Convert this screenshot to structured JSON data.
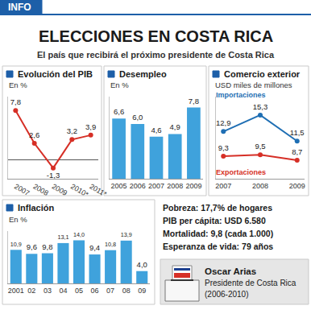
{
  "header": {
    "badge": "INFO",
    "title": "ELECCIONES EN COSTA RICA",
    "subtitle": "El país que recibirá el próximo presidente de Costa Rica"
  },
  "chart_data": [
    {
      "type": "line",
      "title": "Evolución del PIB",
      "subtitle": "En %",
      "categories": [
        "2007",
        "2008",
        "2009",
        "2010*",
        "2011*"
      ],
      "values": [
        7.8,
        2.6,
        -1.3,
        3.2,
        3.9
      ],
      "value_labels": [
        "7,8",
        "2,6",
        "-1,3",
        "3,2",
        "3,9"
      ],
      "color": "#d62f26",
      "ylim": [
        -3,
        10
      ],
      "data_labels": true,
      "tick_labels": "x"
    },
    {
      "type": "bar",
      "title": "Desempleo",
      "subtitle": "En %",
      "categories": [
        "2005",
        "2006",
        "2007",
        "2008",
        "2009"
      ],
      "values": [
        6.6,
        6.0,
        4.6,
        4.9,
        7.8
      ],
      "value_labels": [
        "6,6",
        "6,0",
        "4,6",
        "4,9",
        "7,8"
      ],
      "color": "#3fa2dc",
      "ylim": [
        0,
        9
      ],
      "data_labels": true,
      "tick_labels": "x"
    },
    {
      "type": "line",
      "title": "Comercio exterior",
      "subtitle": "USD miles de millones",
      "categories": [
        "2007",
        "2008",
        "2009"
      ],
      "series": [
        {
          "name": "Importaciones",
          "color": "#1f6fb4",
          "values": [
            12.9,
            15.3,
            11.5
          ],
          "value_labels": [
            "12,9",
            "15,3",
            "11,5"
          ]
        },
        {
          "name": "Exportaciones",
          "color": "#d62f26",
          "values": [
            9.3,
            9.5,
            8.7
          ],
          "value_labels": [
            "9,3",
            "9,5",
            "8,7"
          ]
        }
      ],
      "ylim": [
        6,
        18
      ],
      "data_labels": true,
      "tick_labels": "x"
    },
    {
      "type": "bar",
      "title": "Inflación",
      "subtitle": "En %",
      "categories": [
        "2001",
        "02",
        "03",
        "04",
        "05",
        "06",
        "07",
        "08",
        "09"
      ],
      "values": [
        10.9,
        9.6,
        9.8,
        13.1,
        14.0,
        9.4,
        10.8,
        13.9,
        4.0
      ],
      "value_labels": [
        "10,9",
        "9,6",
        "9,8",
        "13,1",
        "14,0",
        "9,4",
        "10,8",
        "13,9",
        "4,0"
      ],
      "color": "#3fa2dc",
      "ylim": [
        0,
        17
      ],
      "data_labels": true,
      "tick_labels": "x"
    }
  ],
  "facts": [
    "Pobreza: 17,7% de hogares",
    "PIB per cápita: USD 6.580",
    "Mortalidad: 9,8 (cada 1.000)",
    "Esperanza de vida: 79 años"
  ],
  "caption": {
    "name": "Oscar Arias",
    "role": "Presidente de Costa Rica",
    "term": "(2006-2010)"
  }
}
